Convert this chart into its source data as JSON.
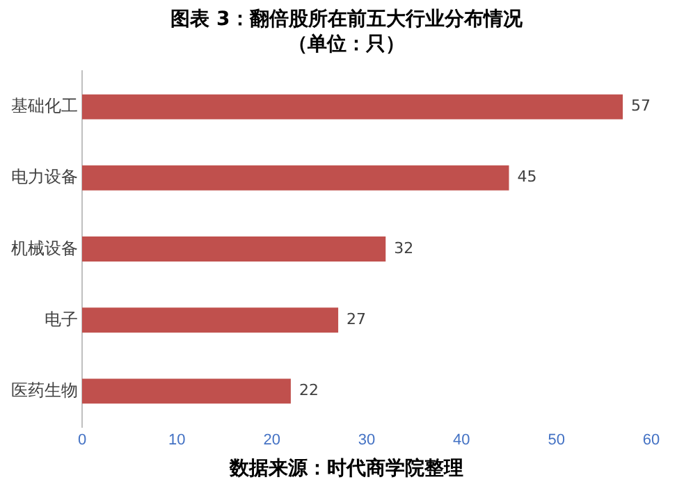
{
  "chart_data": {
    "type": "bar",
    "orientation": "horizontal",
    "title": "图表 3：翻倍股所在前五大行业分布情况",
    "subtitle": "（单位：只）",
    "categories": [
      "基础化工",
      "电力设备",
      "机械设备",
      "电子",
      "医药生物"
    ],
    "values": [
      57,
      45,
      32,
      27,
      22
    ],
    "color": "#c0504d",
    "xlim": [
      0,
      60
    ],
    "xticks": [
      0,
      10,
      20,
      30,
      40,
      50,
      60
    ],
    "grid": false,
    "data_labels": true,
    "annotations": [
      "数据来源：时代商学院整理"
    ]
  }
}
